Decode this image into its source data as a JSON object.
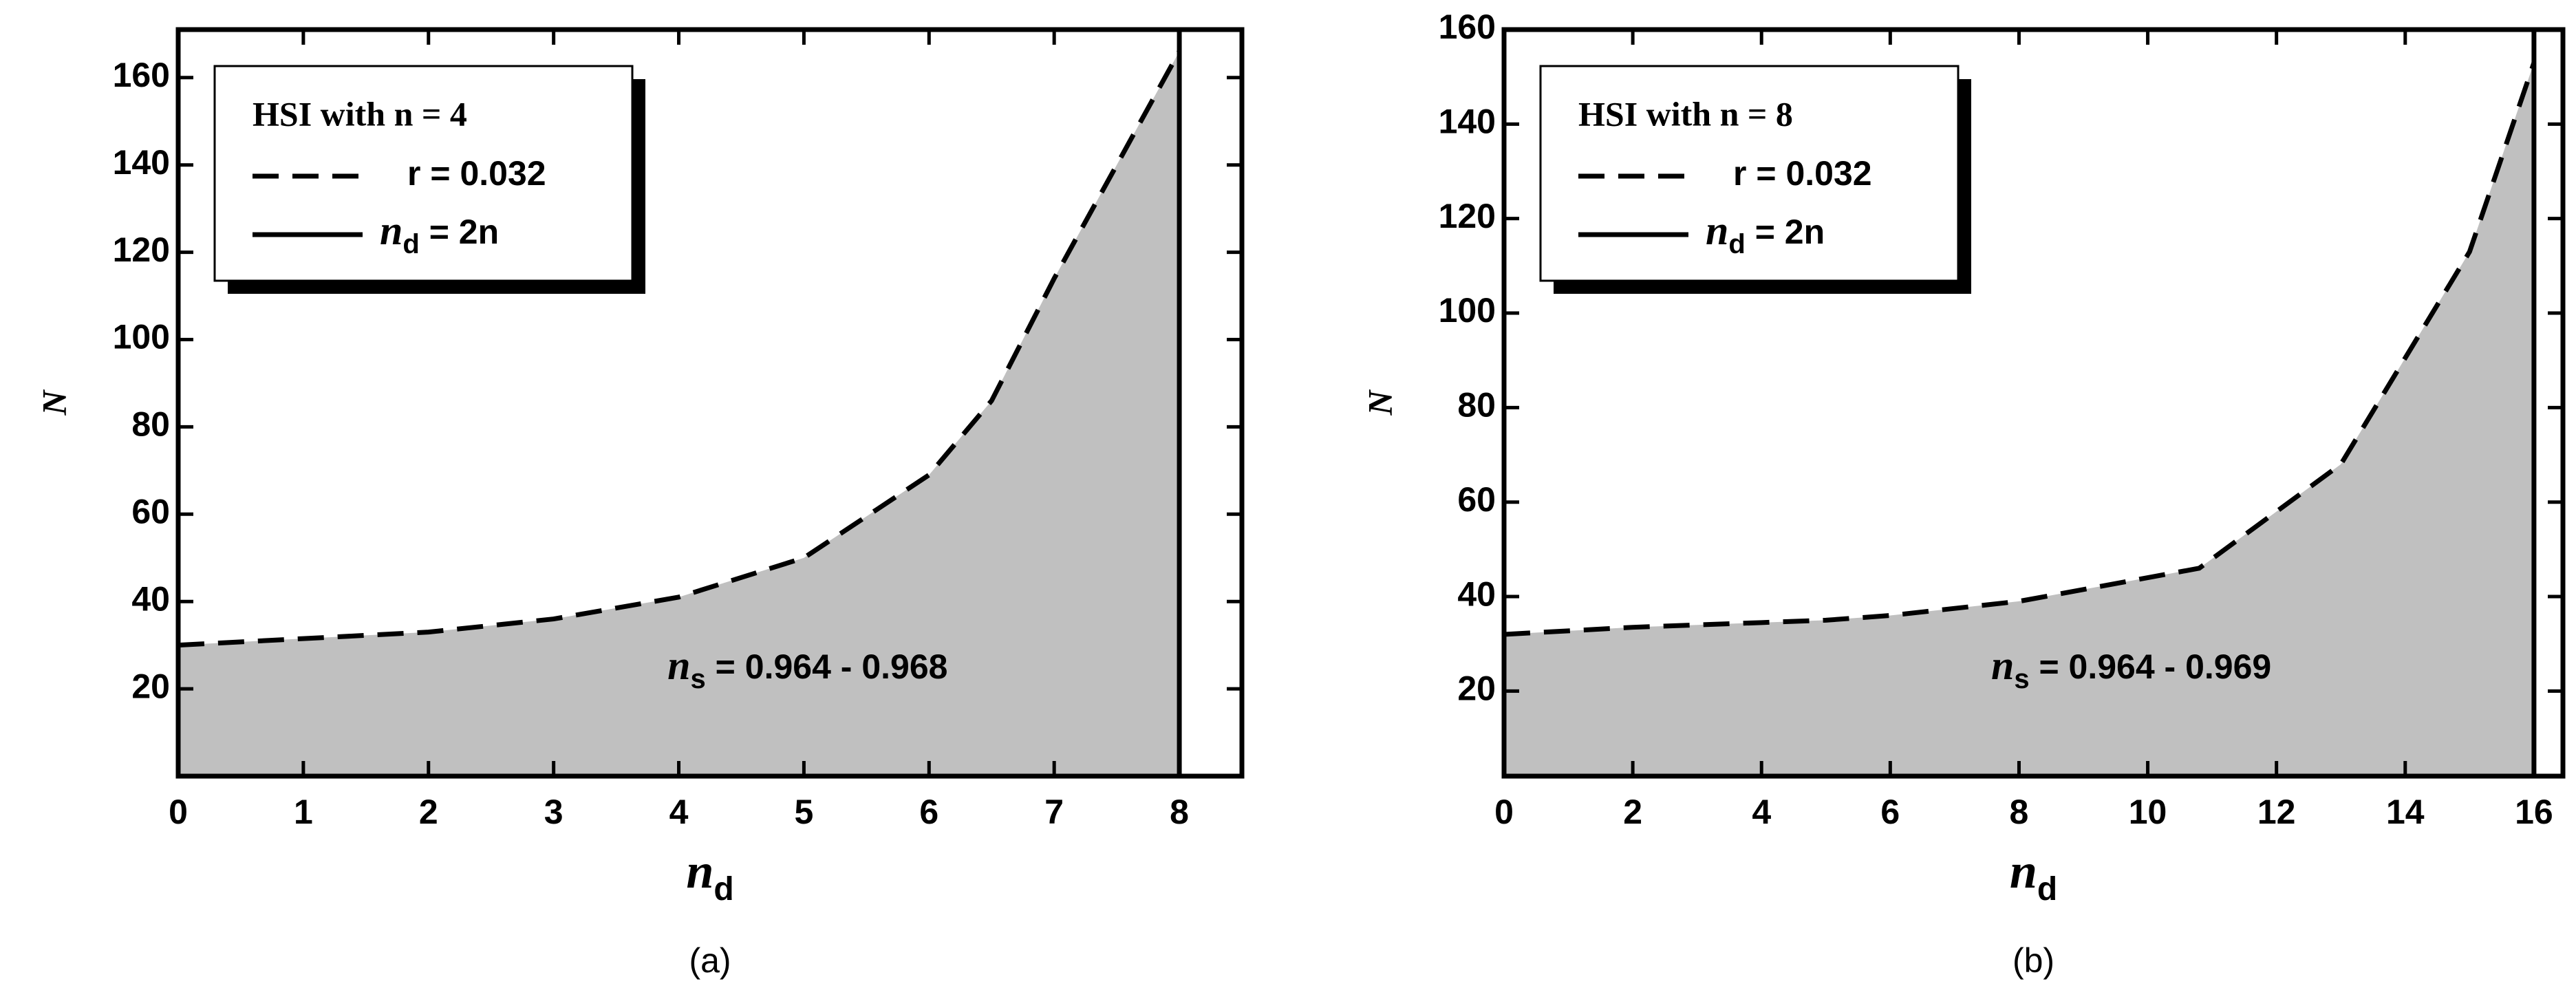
{
  "chart_data": [
    {
      "type": "line",
      "caption": "(a)",
      "xlabel": [
        "n",
        "d"
      ],
      "ylabel": "N",
      "x": [
        0,
        1,
        2,
        3,
        4,
        5,
        6,
        6.5,
        7,
        8
      ],
      "series": [
        {
          "name": "r = 0.032",
          "color": "#000000",
          "dash": true,
          "values": [
            30,
            31.5,
            33,
            36,
            41,
            50,
            69,
            86,
            114,
            166
          ]
        }
      ],
      "fill_color": "#c0c0c0",
      "vline": {
        "x": 8,
        "label": [
          "n",
          "d",
          " = 2n"
        ]
      },
      "legend_title": "HSI with n = 4",
      "annotation": [
        "n",
        "s",
        " = 0.964 - 0.968"
      ],
      "xlim": [
        0,
        8.5
      ],
      "ylim": [
        0,
        171
      ],
      "xticks": [
        0,
        1,
        2,
        3,
        4,
        5,
        6,
        7,
        8
      ],
      "yticks": [
        20,
        40,
        60,
        80,
        100,
        120,
        140,
        160
      ]
    },
    {
      "type": "line",
      "caption": "(b)",
      "xlabel": [
        "n",
        "d"
      ],
      "ylabel": "N",
      "x": [
        0,
        2,
        4,
        5,
        6,
        8,
        10,
        10.8,
        13,
        15,
        16
      ],
      "series": [
        {
          "name": "r = 0.032",
          "color": "#000000",
          "dash": true,
          "values": [
            32,
            33.5,
            34.5,
            35,
            36,
            39,
            44,
            46,
            68,
            113,
            153
          ]
        }
      ],
      "fill_color": "#c0c0c0",
      "vline": {
        "x": 16,
        "label": [
          "n",
          "d",
          " = 2n"
        ]
      },
      "legend_title": "HSI with n = 8",
      "annotation": [
        "n",
        "s",
        " = 0.964 - 0.969"
      ],
      "xlim": [
        0,
        16.45
      ],
      "ylim": [
        2,
        160
      ],
      "xticks": [
        0,
        2,
        4,
        6,
        8,
        10,
        12,
        14,
        16
      ],
      "yticks": [
        20,
        40,
        60,
        80,
        100,
        120,
        140,
        160
      ]
    }
  ]
}
